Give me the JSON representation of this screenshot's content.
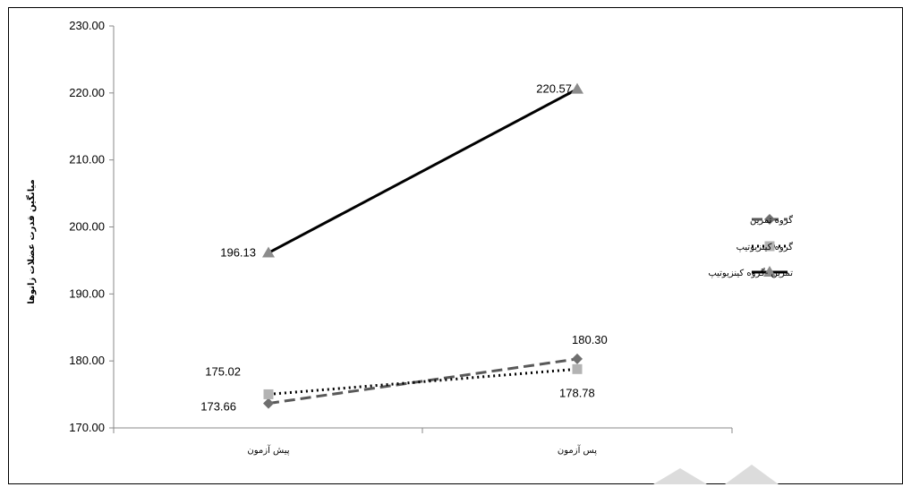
{
  "chart_data": {
    "type": "line",
    "title": "",
    "xlabel": "",
    "ylabel": "میانگین قدرت عضلات زانوها",
    "categories": [
      "پیش آزمون",
      "پس آزمون"
    ],
    "ylim": [
      170,
      230
    ],
    "yticks": [
      "170.00",
      "180.00",
      "190.00",
      "200.00",
      "210.00",
      "220.00",
      "230.00"
    ],
    "grid": false,
    "legend_position": "right",
    "series": [
      {
        "name": "گروه تمرین",
        "values": [
          173.66,
          180.3
        ],
        "labels": [
          "173.66",
          "180.30"
        ],
        "color": "#595959",
        "dash": "dashed",
        "marker": "diamond"
      },
      {
        "name": "گروه کینزیوتیپ",
        "values": [
          175.02,
          178.78
        ],
        "labels": [
          "175.02",
          "178.78"
        ],
        "color": "#000000",
        "dash": "dotted",
        "marker": "square"
      },
      {
        "name": "تمرین -گروه کینزیوتیپ",
        "values": [
          196.13,
          220.57
        ],
        "labels": [
          "196.13",
          "220.57"
        ],
        "color": "#000000",
        "dash": "solid",
        "marker": "triangle"
      }
    ]
  }
}
